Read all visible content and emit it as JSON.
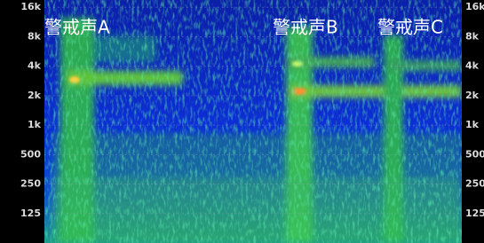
{
  "chart_data": {
    "type": "spectrogram",
    "annotations": [
      "警戒声A",
      "警戒声B",
      "警戒声C"
    ],
    "ylim": [
      62.5,
      19000
    ],
    "log_scale": true,
    "grid": true,
    "yticks": [
      {
        "value": 16000,
        "label": "16k"
      },
      {
        "value": 8000,
        "label": "8k"
      },
      {
        "value": 4000,
        "label": "4k"
      },
      {
        "value": 2000,
        "label": "2k"
      },
      {
        "value": 1000,
        "label": "1k"
      },
      500,
      250,
      125
    ]
  }
}
